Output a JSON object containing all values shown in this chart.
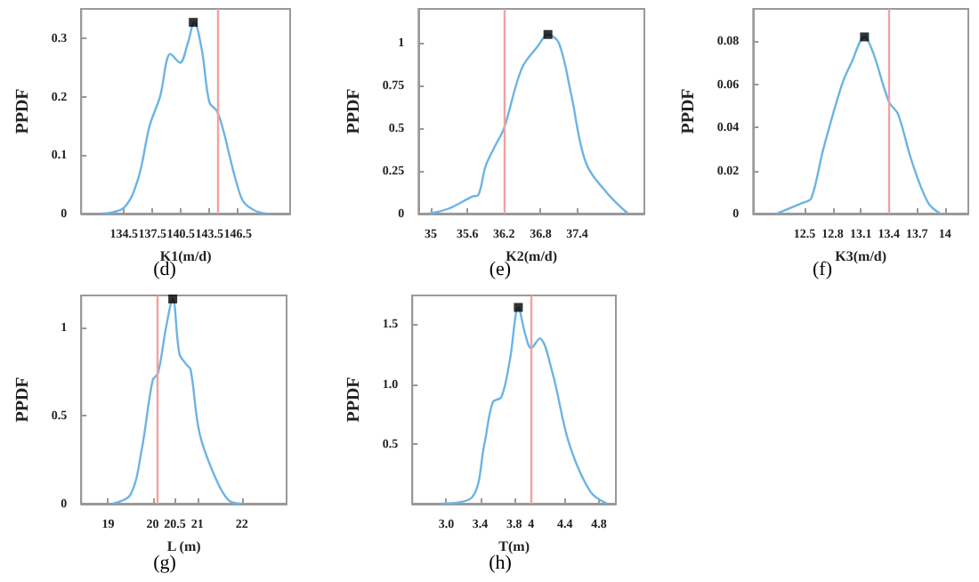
{
  "chart_data": [
    {
      "type": "line",
      "title": "(d)",
      "xlabel": "K1(m/d)",
      "ylabel": "PPDF",
      "xlim": [
        130,
        152
      ],
      "xticks": [
        134.5,
        137.5,
        140.5,
        143.5,
        146.5
      ],
      "ylim": [
        0,
        0.35
      ],
      "yticks": [
        0,
        0.1,
        0.2,
        0.3
      ],
      "grid": false,
      "marker": "none",
      "series": [
        {
          "color": "#6cb4e4",
          "x": [
            132.2,
            134.5,
            136.0,
            137.2,
            138.3,
            139.4,
            140.4,
            141.2,
            141.9,
            142.7,
            143.5,
            144.3,
            145.0,
            145.6,
            146.4,
            147.1,
            148.3,
            149.5
          ],
          "values": [
            0,
            0.01,
            0.06,
            0.15,
            0.2,
            0.273,
            0.258,
            0.29,
            0.327,
            0.28,
            0.19,
            0.175,
            0.14,
            0.1,
            0.05,
            0.02,
            0.005,
            0
          ]
        },
        {
          "type": "scatter",
          "marker": "square",
          "color": "#000000",
          "x": [
            141.8
          ],
          "values": [
            0.327
          ]
        }
      ],
      "ref_lines": [
        {
          "axis": "x",
          "value": 144.3,
          "color": "#f4a0a0"
        }
      ]
    },
    {
      "type": "line",
      "title": "(e)",
      "xlabel": "K2(m/d)",
      "ylabel": "PPDF",
      "xlim": [
        34.8,
        38.5
      ],
      "xticks": [
        35,
        35.6,
        36.2,
        36.8,
        37.4
      ],
      "ylim": [
        0,
        1.2
      ],
      "yticks": [
        0,
        0.25,
        0.5,
        0.75,
        1
      ],
      "grid": false,
      "marker": "none",
      "series": [
        {
          "color": "#6cb4e4",
          "x": [
            34.97,
            35.3,
            35.68,
            35.78,
            35.9,
            36.06,
            36.2,
            36.49,
            36.75,
            36.92,
            37.1,
            37.3,
            37.54,
            37.89,
            38.23
          ],
          "values": [
            0,
            0.03,
            0.1,
            0.11,
            0.28,
            0.4,
            0.5,
            0.85,
            0.98,
            1.05,
            1.0,
            0.7,
            0.3,
            0.12,
            0
          ]
        },
        {
          "type": "scatter",
          "marker": "square",
          "color": "#000000",
          "x": [
            36.92
          ],
          "values": [
            1.05
          ]
        }
      ],
      "ref_lines": [
        {
          "axis": "x",
          "value": 36.2,
          "color": "#f4a0a0"
        }
      ]
    },
    {
      "type": "line",
      "title": "(f)",
      "xlabel": "K3(m/d)",
      "ylabel": "PPDF",
      "xlim": [
        11.95,
        14.25
      ],
      "xticks": [
        12.5,
        12.8,
        13.1,
        13.4,
        13.7,
        14
      ],
      "ylim": [
        0,
        0.095
      ],
      "yticks": [
        0,
        0.02,
        0.04,
        0.06,
        0.08
      ],
      "grid": false,
      "marker": "none",
      "series": [
        {
          "color": "#6cb4e4",
          "x": [
            12.2,
            12.48,
            12.57,
            12.7,
            12.9,
            13.0,
            13.14,
            13.23,
            13.4,
            13.5,
            13.64,
            13.82,
            13.95
          ],
          "values": [
            0,
            0.005,
            0.007,
            0.03,
            0.06,
            0.07,
            0.082,
            0.075,
            0.052,
            0.046,
            0.025,
            0.005,
            0
          ]
        },
        {
          "type": "scatter",
          "marker": "square",
          "color": "#000000",
          "x": [
            13.14
          ],
          "values": [
            0.082
          ]
        }
      ],
      "ref_lines": [
        {
          "axis": "x",
          "value": 13.39,
          "color": "#f4a0a0"
        }
      ]
    },
    {
      "type": "line",
      "title": "(g)",
      "xlabel": "L (m)",
      "ylabel": "PPDF",
      "xlim": [
        18.4,
        23
      ],
      "xticks": [
        19,
        20,
        20.5,
        21,
        22
      ],
      "ylim": [
        0,
        1.18
      ],
      "yticks": [
        0,
        0.5,
        1
      ],
      "grid": false,
      "marker": "none",
      "series": [
        {
          "color": "#6cb4e4",
          "x": [
            19.1,
            19.5,
            19.75,
            20.0,
            20.12,
            20.3,
            20.45,
            20.6,
            20.75,
            20.85,
            21.05,
            21.4,
            21.7,
            22.0
          ],
          "values": [
            0,
            0.05,
            0.3,
            0.7,
            0.74,
            1.0,
            1.16,
            0.85,
            0.79,
            0.76,
            0.4,
            0.15,
            0.02,
            0
          ]
        },
        {
          "type": "scatter",
          "marker": "square",
          "color": "#000000",
          "x": [
            20.45
          ],
          "values": [
            1.16
          ]
        }
      ],
      "ref_lines": [
        {
          "axis": "x",
          "value": 20.1,
          "color": "#f4a0a0"
        }
      ]
    },
    {
      "type": "line",
      "title": "(h)",
      "xlabel": "T(m)",
      "ylabel": "PPDF",
      "xlim": [
        2.6,
        5.0
      ],
      "xticks": [
        {
          "value": 3,
          "label": "3.0"
        },
        3.4,
        3.8,
        4,
        4.4,
        4.8
      ],
      "ylim": [
        0,
        1.74
      ],
      "yticks": [
        0.5,
        {
          "value": 1,
          "label": "1.0"
        },
        1.5
      ],
      "grid": false,
      "marker": "none",
      "series": [
        {
          "color": "#6cb4e4",
          "x": [
            2.95,
            3.3,
            3.45,
            3.55,
            3.65,
            3.75,
            3.85,
            3.93,
            4.0,
            4.1,
            4.25,
            4.45,
            4.7,
            4.9
          ],
          "values": [
            0,
            0.05,
            0.5,
            0.85,
            0.89,
            1.2,
            1.64,
            1.42,
            1.3,
            1.38,
            1.1,
            0.5,
            0.1,
            0
          ]
        },
        {
          "type": "scatter",
          "marker": "square",
          "color": "#000000",
          "x": [
            3.85
          ],
          "values": [
            1.64
          ]
        }
      ],
      "ref_lines": [
        {
          "axis": "x",
          "value": 4.0,
          "color": "#f4a0a0"
        }
      ]
    }
  ]
}
